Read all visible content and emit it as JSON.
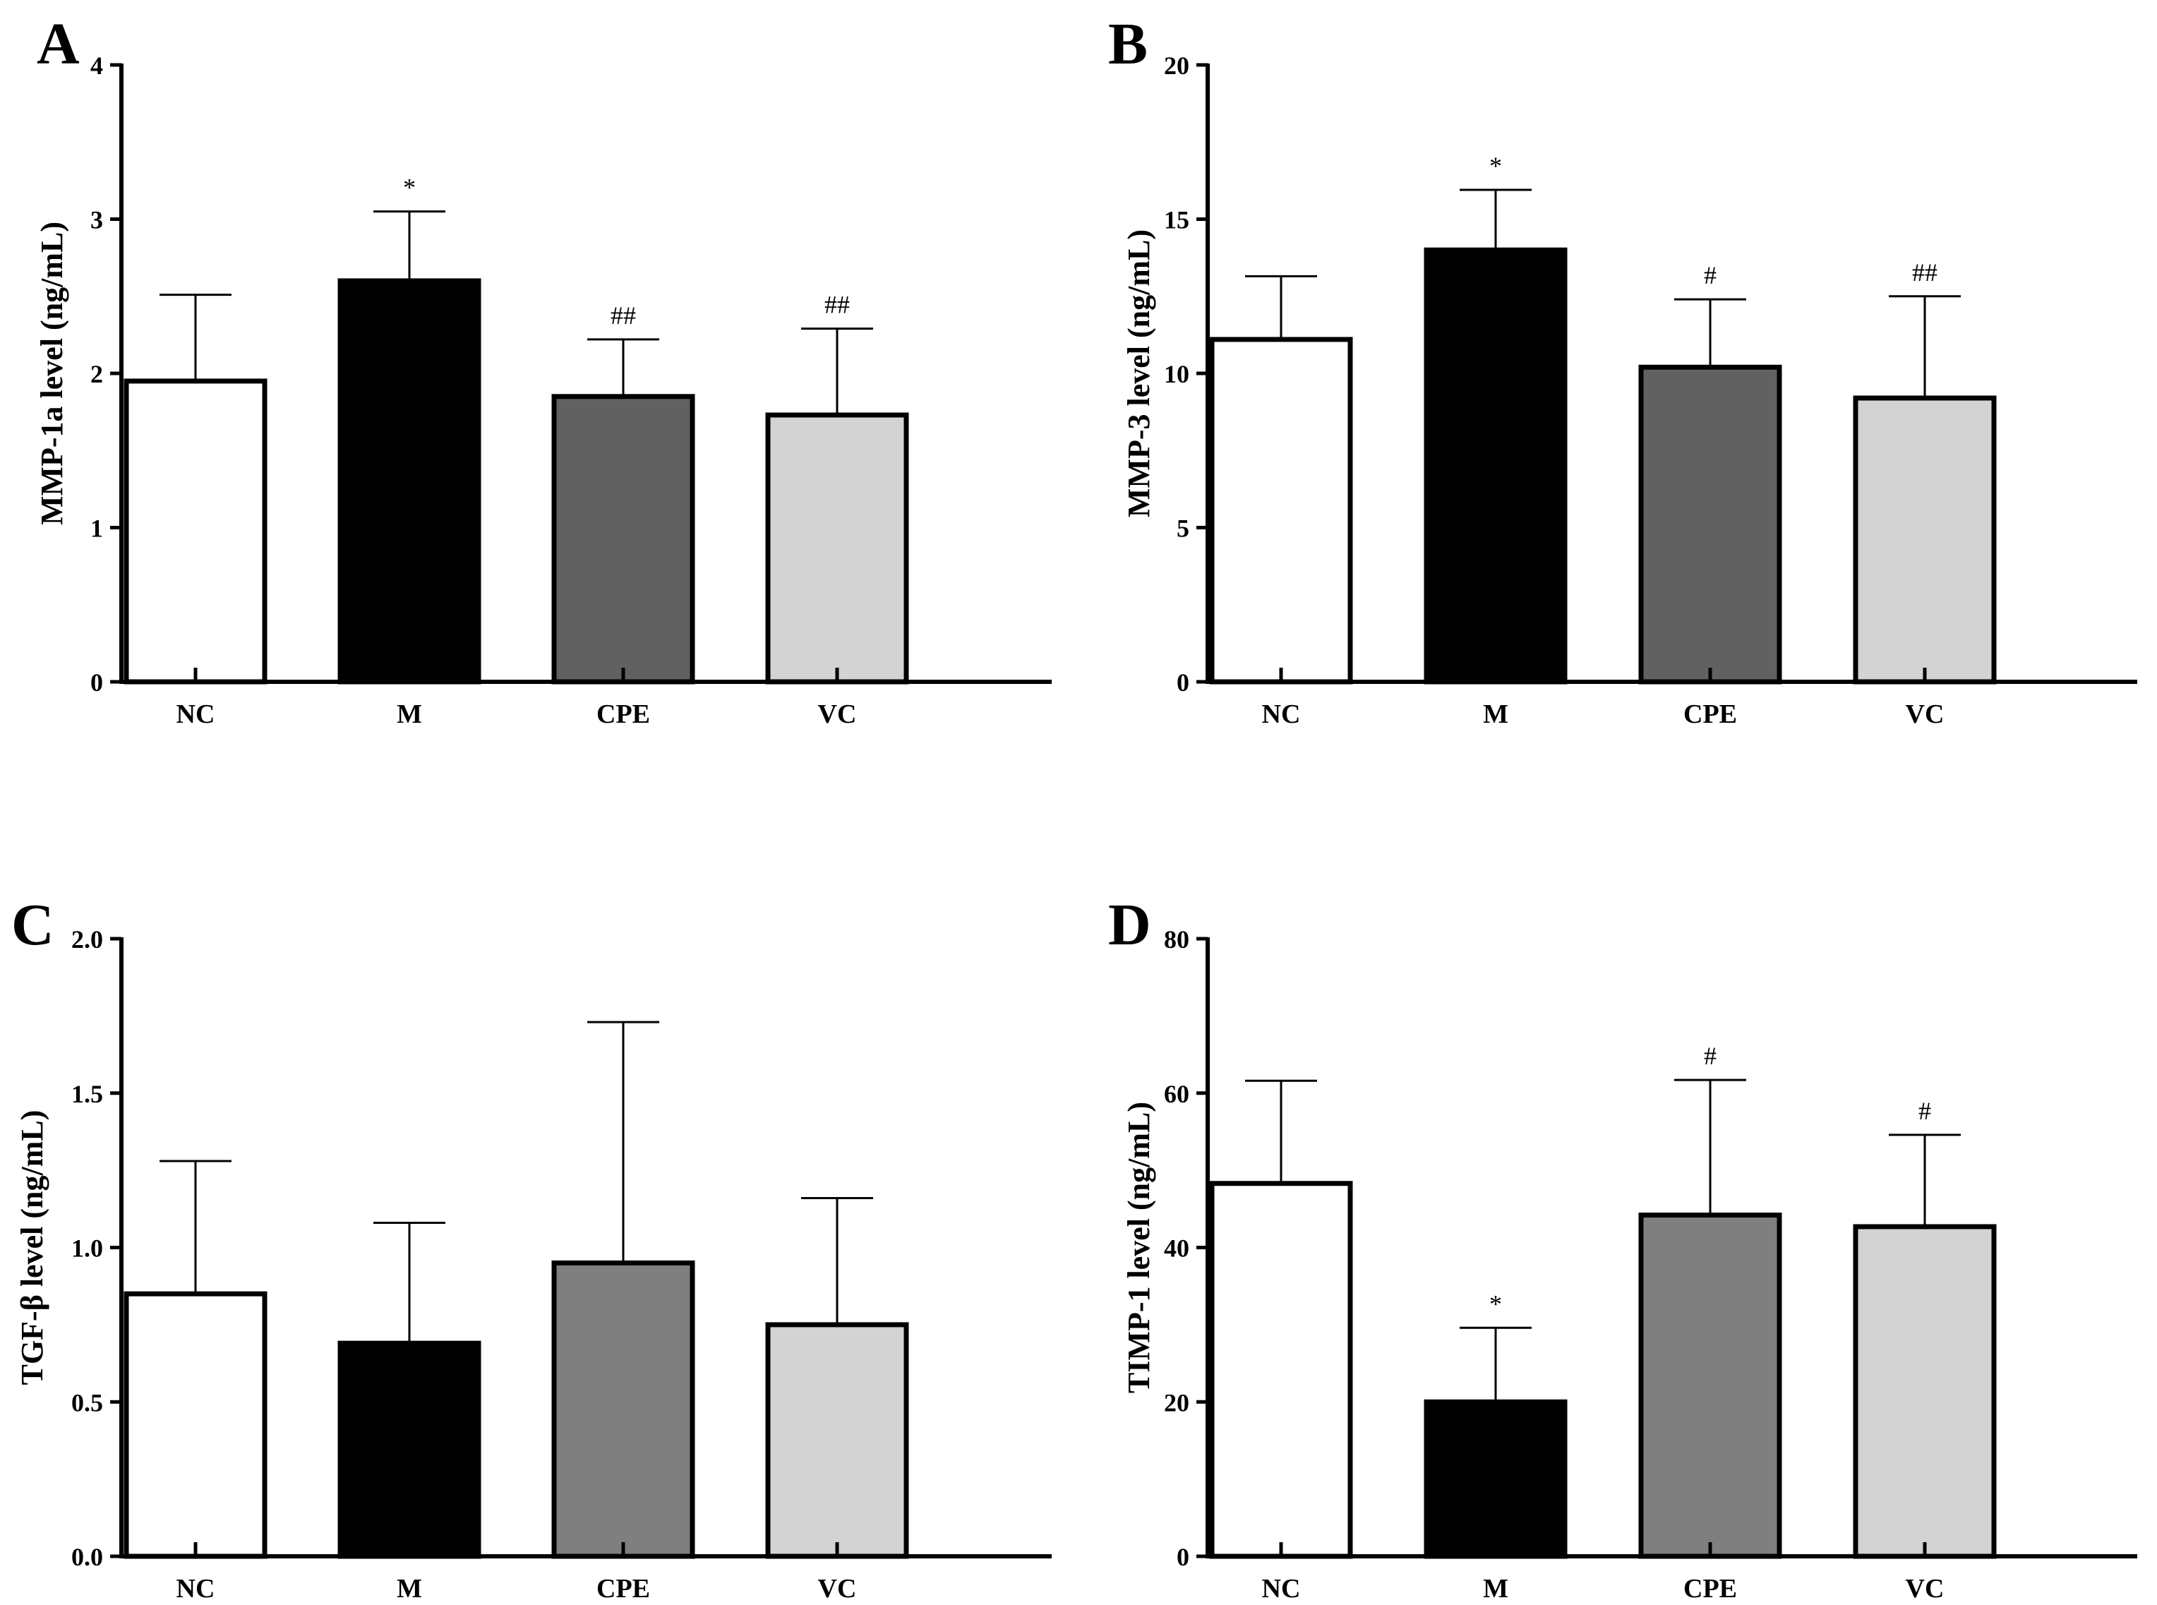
{
  "chart_data": [
    {
      "type": "bar",
      "panel": "A",
      "ylabel": "MMP-1a level (ng/mL)",
      "ylim": [
        0,
        4
      ],
      "yticks": [
        "0",
        "1",
        "2",
        "3",
        "4"
      ],
      "yticks_values": [
        0,
        1,
        2,
        3,
        4
      ],
      "categories": [
        "NC",
        "M",
        "CPE",
        "VC"
      ],
      "values": [
        1.95,
        2.6,
        1.85,
        1.73
      ],
      "errors": [
        0.56,
        0.45,
        0.37,
        0.56
      ],
      "annotations": [
        "",
        "*",
        "##",
        "##"
      ],
      "colors": [
        "#ffffff",
        "#000000",
        "#616161",
        "#d3d3d3"
      ]
    },
    {
      "type": "bar",
      "panel": "B",
      "ylabel": "MMP-3 level (ng/mL)",
      "ylim": [
        0,
        20
      ],
      "yticks": [
        "0",
        "5",
        "10",
        "15",
        "20"
      ],
      "yticks_values": [
        0,
        5,
        10,
        15,
        20
      ],
      "categories": [
        "NC",
        "M",
        "CPE",
        "VC"
      ],
      "values": [
        11.1,
        14.0,
        10.2,
        9.2
      ],
      "errors": [
        2.05,
        1.95,
        2.2,
        3.3
      ],
      "annotations": [
        "",
        "*",
        "#",
        "##"
      ],
      "colors": [
        "#ffffff",
        "#000000",
        "#616161",
        "#d3d3d3"
      ]
    },
    {
      "type": "bar",
      "panel": "C",
      "ylabel": "TGF-β level (ng/mL)",
      "ylim": [
        0,
        2
      ],
      "yticks": [
        "0.0",
        "0.5",
        "1.0",
        "1.5",
        "2.0"
      ],
      "yticks_values": [
        0,
        0.5,
        1.0,
        1.5,
        2.0
      ],
      "categories": [
        "NC",
        "M",
        "CPE",
        "VC"
      ],
      "values": [
        0.85,
        0.69,
        0.95,
        0.75
      ],
      "errors": [
        0.43,
        0.39,
        0.78,
        0.41
      ],
      "annotations": [
        "",
        "",
        "",
        ""
      ],
      "colors": [
        "#ffffff",
        "#000000",
        "#7f7f7f",
        "#d3d3d3"
      ]
    },
    {
      "type": "bar",
      "panel": "D",
      "ylabel": "TIMP-1 level (ng/mL)",
      "ylim": [
        0,
        80
      ],
      "yticks": [
        "0",
        "20",
        "40",
        "60",
        "80"
      ],
      "yticks_values": [
        0,
        20,
        40,
        60,
        80
      ],
      "categories": [
        "NC",
        "M",
        "CPE",
        "VC"
      ],
      "values": [
        48.3,
        20.0,
        44.2,
        42.7
      ],
      "errors": [
        13.3,
        9.6,
        17.5,
        11.9
      ],
      "annotations": [
        "",
        "*",
        "#",
        "#"
      ],
      "colors": [
        "#ffffff",
        "#000000",
        "#7f7f7f",
        "#d3d3d3"
      ]
    }
  ]
}
